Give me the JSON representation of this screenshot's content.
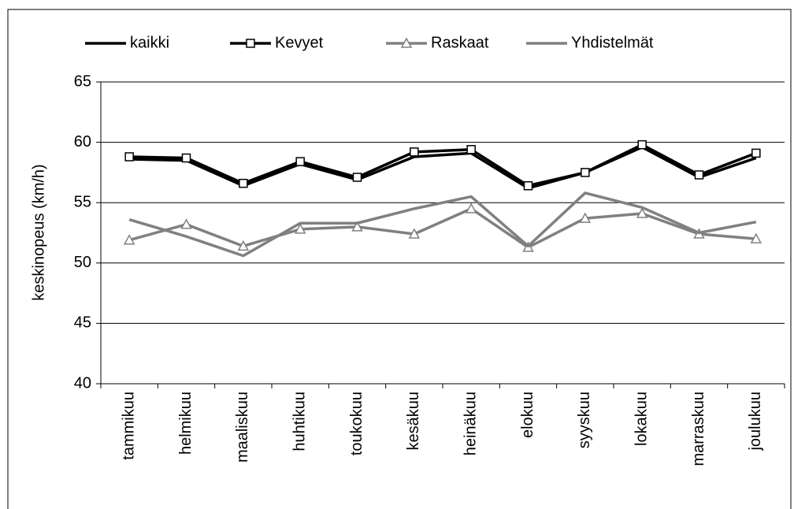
{
  "chart_data": {
    "type": "line",
    "y_label": "keskinopeus (km/h)",
    "categories": [
      "tammikuu",
      "helmikuu",
      "maaliskuu",
      "huhtikuu",
      "toukokuu",
      "kesäkuu",
      "heinäkuu",
      "elokuu",
      "syyskuu",
      "lokakuu",
      "marraskuu",
      "joulukuu"
    ],
    "series": [
      {
        "name": "kaikki",
        "color": "#000000",
        "marker": "none",
        "values": [
          58.6,
          58.5,
          56.4,
          58.2,
          56.9,
          58.8,
          59.1,
          56.2,
          57.5,
          59.6,
          57.1,
          58.7
        ]
      },
      {
        "name": "Kevyet",
        "color": "#000000",
        "marker": "square",
        "values": [
          58.8,
          58.7,
          56.6,
          58.4,
          57.1,
          59.2,
          59.4,
          56.4,
          57.5,
          59.8,
          57.3,
          59.1
        ]
      },
      {
        "name": "Raskaat",
        "color": "#808080",
        "marker": "triangle",
        "values": [
          51.9,
          53.2,
          51.4,
          52.8,
          53.0,
          52.4,
          54.5,
          51.3,
          53.7,
          54.1,
          52.4,
          52.0
        ]
      },
      {
        "name": "Yhdistelmät",
        "color": "#808080",
        "marker": "none",
        "values": [
          53.6,
          52.2,
          50.6,
          53.3,
          53.3,
          54.5,
          55.5,
          51.4,
          55.8,
          54.6,
          52.5,
          53.4
        ]
      }
    ],
    "ylim": [
      40,
      65
    ],
    "yticks": [
      40,
      45,
      50,
      55,
      60,
      65
    ],
    "grid": true,
    "legend": "top"
  }
}
